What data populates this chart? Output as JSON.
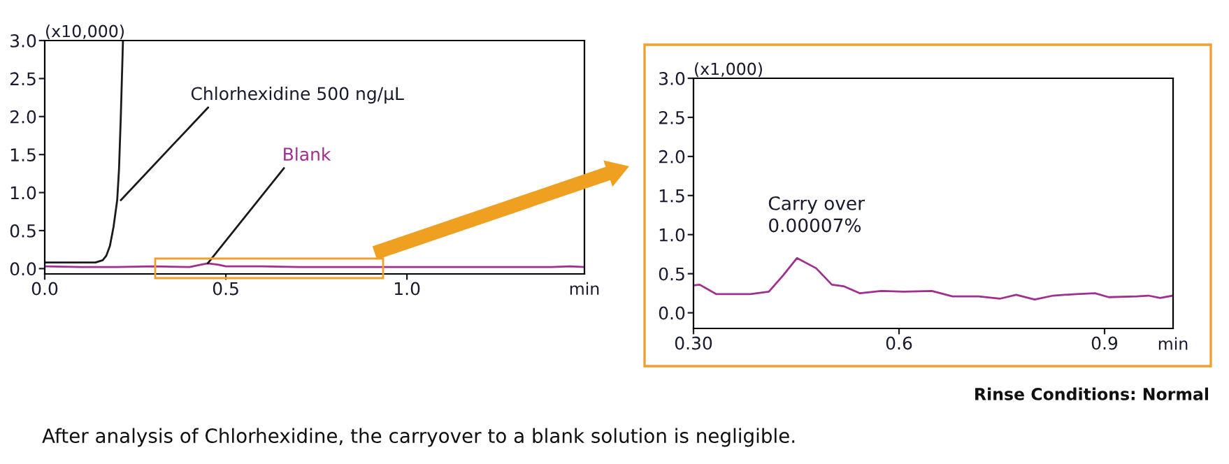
{
  "chart_data": [
    {
      "type": "line",
      "ylabel": "(x10,000)",
      "xlabel": "min",
      "xlim": [
        0,
        1.49
      ],
      "xticks": [
        {
          "value": 0,
          "label": "0.0"
        },
        0.5,
        {
          "value": 1,
          "label": "1.0"
        }
      ],
      "ylim": [
        -0.07,
        3.0
      ],
      "yticks": [
        {
          "value": 0,
          "label": "0.0"
        },
        0.5,
        {
          "value": 1,
          "label": "1.0"
        },
        1.5,
        {
          "value": 2,
          "label": "2.0"
        },
        2.5,
        {
          "value": 3,
          "label": "3.0"
        }
      ],
      "grid": false,
      "legend": false,
      "marker": "none",
      "line_style": "solid",
      "series": [
        {
          "name": "Chlorhexidine 500 ng/µL",
          "color": "#1a1a1a",
          "x": [
            0,
            0.05,
            0.1,
            0.14,
            0.16,
            0.17,
            0.18,
            0.19,
            0.2,
            0.205,
            0.21,
            0.216
          ],
          "values": [
            0.08,
            0.08,
            0.08,
            0.08,
            0.11,
            0.17,
            0.3,
            0.55,
            0.9,
            1.3,
            2.0,
            3.0
          ]
        },
        {
          "name": "Blank",
          "color": "#a0308f",
          "x": [
            0,
            0.1,
            0.2,
            0.3,
            0.4,
            0.43,
            0.45,
            0.48,
            0.5,
            0.6,
            0.7,
            0.8,
            0.9,
            1.0,
            1.1,
            1.2,
            1.3,
            1.4,
            1.45,
            1.49
          ],
          "values": [
            0.03,
            0.02,
            0.02,
            0.03,
            0.02,
            0.05,
            0.07,
            0.05,
            0.03,
            0.03,
            0.02,
            0.02,
            0.02,
            0.02,
            0.02,
            0.02,
            0.02,
            0.02,
            0.03,
            0.02
          ]
        }
      ]
    },
    {
      "type": "line",
      "ylabel": "(x1,000)",
      "xlabel": "min",
      "xlim": [
        0.3,
        1.0
      ],
      "xticks": [
        {
          "value": 0.3,
          "label": "0.30"
        },
        0.6,
        0.9
      ],
      "ylim": [
        -0.2,
        3.0
      ],
      "yticks": [
        {
          "value": 0,
          "label": "0.0"
        },
        0.5,
        {
          "value": 1,
          "label": "1.0"
        },
        1.5,
        {
          "value": 2,
          "label": "2.0"
        },
        2.5,
        {
          "value": 3,
          "label": "3.0"
        }
      ],
      "grid": false,
      "legend": false,
      "marker": "none",
      "line_style": "solid",
      "series": [
        {
          "color": "#a0308f",
          "x": [
            0.3,
            0.309,
            0.333,
            0.383,
            0.41,
            0.431,
            0.451,
            0.479,
            0.502,
            0.519,
            0.543,
            0.574,
            0.607,
            0.648,
            0.678,
            0.716,
            0.747,
            0.771,
            0.798,
            0.825,
            0.859,
            0.886,
            0.906,
            0.947,
            0.964,
            0.981,
            1.0
          ],
          "values": [
            0.35,
            0.36,
            0.24,
            0.24,
            0.27,
            0.48,
            0.7,
            0.57,
            0.36,
            0.34,
            0.25,
            0.28,
            0.27,
            0.28,
            0.21,
            0.21,
            0.18,
            0.23,
            0.17,
            0.22,
            0.24,
            0.25,
            0.2,
            0.21,
            0.22,
            0.19,
            0.22
          ]
        }
      ],
      "annotations": [
        "Carry over\n0.00007%",
        "Rinse Conditions: Normal",
        "After analysis of Chlorhexidine, the carryover to a blank solution is negligible."
      ]
    }
  ]
}
